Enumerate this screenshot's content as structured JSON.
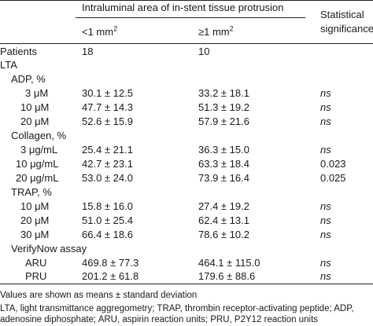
{
  "header": {
    "group_title": "Intraluminal area of in-stent tissue protrusion",
    "col1_prefix": "<1 mm",
    "col1_sup": "2",
    "col2_prefix": "≥1 mm",
    "col2_sup": "2",
    "sig_line1": "Statistical",
    "sig_line2": "significance"
  },
  "rows": [
    {
      "label": "Patients",
      "v1": "18",
      "v2": "10",
      "sig": ""
    },
    {
      "label": "LTA",
      "v1": "",
      "v2": "",
      "sig": ""
    },
    {
      "label": "ADP, %",
      "v1": "",
      "v2": "",
      "sig": ""
    },
    {
      "label": "3 μM",
      "v1": "30.1 ± 12.5",
      "v2": "33.2 ± 18.1",
      "sig": "ns"
    },
    {
      "label": "10 μM",
      "v1": "47.7 ± 14.3",
      "v2": "51.3 ± 19.2",
      "sig": "ns"
    },
    {
      "label": "20 μM",
      "v1": "52.6 ± 15.9",
      "v2": "57.9 ± 21.6",
      "sig": "ns"
    },
    {
      "label": "Collagen, %",
      "v1": "",
      "v2": "",
      "sig": ""
    },
    {
      "label": "3 μg/mL",
      "v1": "25.4 ± 21.1",
      "v2": "36.3 ± 15.0",
      "sig": "ns"
    },
    {
      "label": "10 μg/mL",
      "v1": "42.7 ± 23.1",
      "v2": "63.3 ± 18.4",
      "sig": "0.023"
    },
    {
      "label": "20 μg/mL",
      "v1": "53.0 ± 24.0",
      "v2": "73.9 ± 16.4",
      "sig": "0.025"
    },
    {
      "label": "TRAP, %",
      "v1": "",
      "v2": "",
      "sig": ""
    },
    {
      "label": "10 μM",
      "v1": "15.8 ± 16.0",
      "v2": "27.4 ± 19.2",
      "sig": "ns"
    },
    {
      "label": "20 μM",
      "v1": "51.0 ± 25.4",
      "v2": "62.4 ± 13.1",
      "sig": "ns"
    },
    {
      "label": "30 μM",
      "v1": "66.4 ± 18.6",
      "v2": "78.6 ± 10.2",
      "sig": "ns"
    },
    {
      "label": "VerifyNow assay",
      "v1": "",
      "v2": "",
      "sig": ""
    },
    {
      "label": "ARU",
      "v1": "469.8 ± 77.3",
      "v2": "464.1 ± 115.0",
      "sig": "ns"
    },
    {
      "label": "PRU",
      "v1": "201.2 ± 61.8",
      "v2": "179.6 ± 88.6",
      "sig": "ns"
    }
  ],
  "footnotes": {
    "line1": "Values are shown as means ± standard deviation",
    "line2": "LTA, light transmittance aggregometry; TRAP, thrombin receptor-activating peptide; ADP,",
    "line3": "adenosine diphosphate; ARU, aspirin reaction units; PRU, P2Y12 reaction units"
  }
}
